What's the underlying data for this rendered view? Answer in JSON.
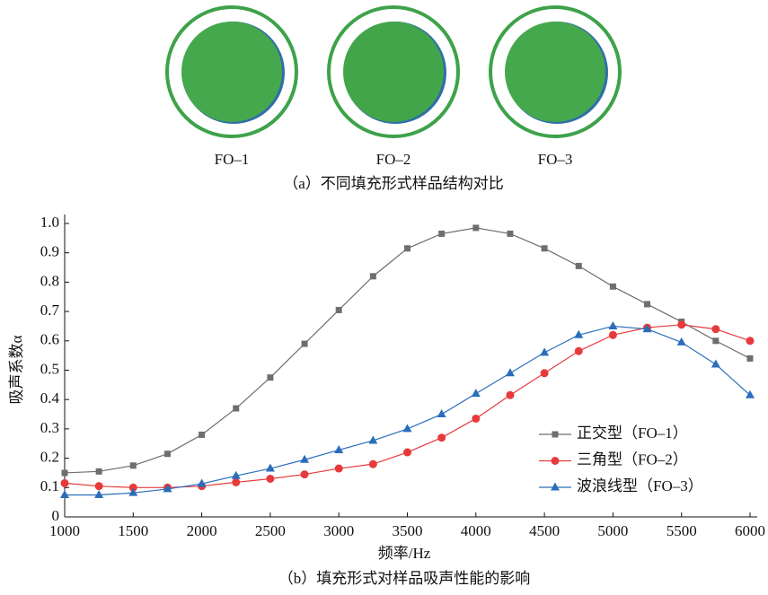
{
  "figure": {
    "samples": [
      {
        "label": "FO–1"
      },
      {
        "label": "FO–2"
      },
      {
        "label": "FO–3"
      }
    ],
    "caption": "（a）不同填充形式样品结构对比"
  },
  "chart_data": {
    "type": "line",
    "caption": "（b）填充形式对样品吸声性能的影响",
    "x_label": "频率/Hz",
    "y_label": "吸声系数α",
    "x": [
      1000,
      1250,
      1500,
      1750,
      2000,
      2250,
      2500,
      2750,
      3000,
      3250,
      3500,
      3750,
      4000,
      4250,
      4500,
      4750,
      5000,
      5250,
      5500,
      5750,
      6000
    ],
    "series": [
      {
        "name": "正交型（FO–1）",
        "color": "#6e6e6e",
        "marker": "square",
        "values": [
          0.15,
          0.155,
          0.175,
          0.215,
          0.28,
          0.37,
          0.475,
          0.59,
          0.705,
          0.82,
          0.915,
          0.965,
          0.985,
          0.965,
          0.915,
          0.855,
          0.785,
          0.725,
          0.665,
          0.6,
          0.54
        ]
      },
      {
        "name": "三角型（FO–2）",
        "color": "#e8393b",
        "marker": "circle",
        "values": [
          0.115,
          0.105,
          0.1,
          0.1,
          0.105,
          0.118,
          0.13,
          0.145,
          0.165,
          0.18,
          0.22,
          0.27,
          0.335,
          0.415,
          0.49,
          0.565,
          0.62,
          0.645,
          0.655,
          0.64,
          0.6
        ]
      },
      {
        "name": "波浪线型（FO–3）",
        "color": "#2a6ebb",
        "marker": "triangle",
        "values": [
          0.075,
          0.075,
          0.082,
          0.095,
          0.113,
          0.14,
          0.165,
          0.195,
          0.228,
          0.26,
          0.3,
          0.35,
          0.42,
          0.49,
          0.56,
          0.62,
          0.65,
          0.64,
          0.595,
          0.52,
          0.415
        ]
      }
    ],
    "xlim": [
      1000,
      6000
    ],
    "xticks": [
      1000,
      1500,
      2000,
      2500,
      3000,
      3500,
      4000,
      4500,
      5000,
      5500,
      6000
    ],
    "ylim": [
      0,
      1
    ],
    "yticks": [
      0,
      0.1,
      0.2,
      0.3,
      0.4,
      0.5,
      0.6,
      0.7,
      0.8,
      0.9,
      {
        "value": 1,
        "label": "1.0"
      }
    ],
    "legend": "lower-right"
  }
}
